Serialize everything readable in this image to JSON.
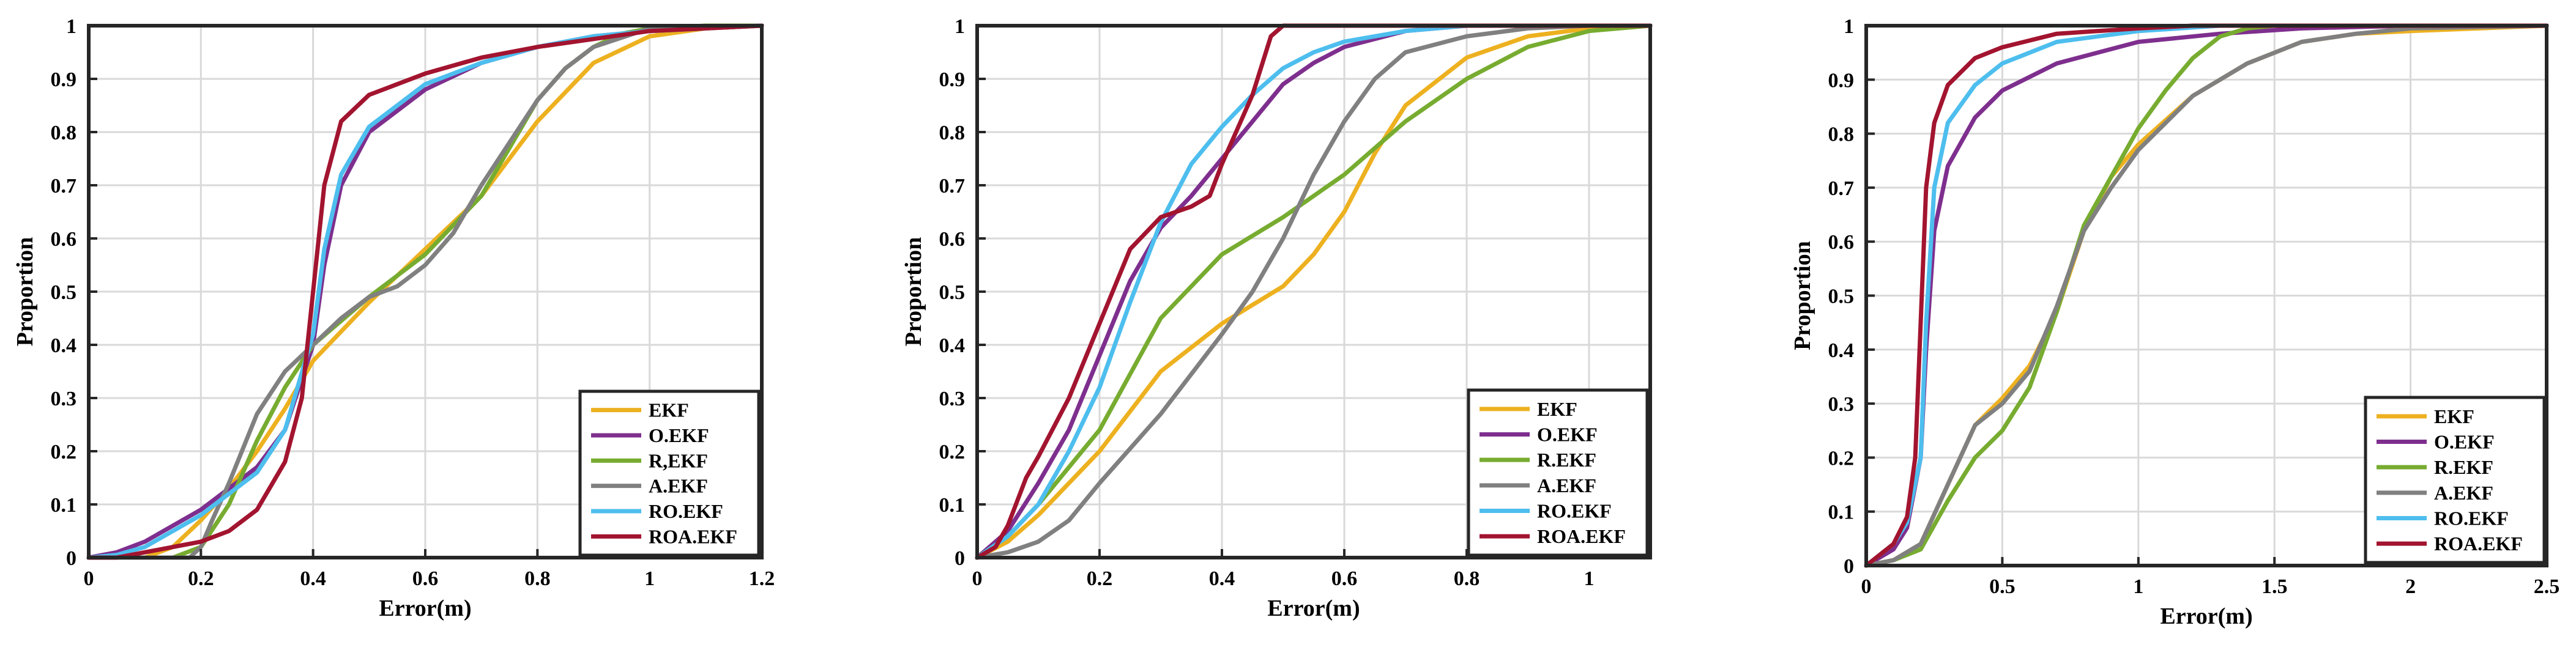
{
  "colors": {
    "EKF": "#EDB120",
    "O.EKF": "#7E2F8E",
    "R.EKF": "#77AC30",
    "A.EKF": "#808080",
    "RO.EKF": "#4DBEEE",
    "ROA.EKF": "#A2142F"
  },
  "chart_data": [
    {
      "type": "line",
      "title": "",
      "xlabel": "Error(m)",
      "ylabel": "Proportion",
      "xlim": [
        0,
        1.2
      ],
      "ylim": [
        0,
        1
      ],
      "xticks": [
        0,
        0.2,
        0.4,
        0.6,
        0.8,
        1,
        1.2
      ],
      "xtick_labels": [
        "0",
        "0.2",
        "0.4",
        "0.6",
        "0.8",
        "1",
        "1.2"
      ],
      "yticks": [
        0,
        0.1,
        0.2,
        0.3,
        0.4,
        0.5,
        0.6,
        0.7,
        0.8,
        0.9,
        1
      ],
      "ytick_labels": [
        "0",
        "0.1",
        "0.2",
        "0.3",
        "0.4",
        "0.5",
        "0.6",
        "0.7",
        "0.8",
        "0.9",
        "1"
      ],
      "grid": true,
      "legend_position": "bottom-right",
      "series": [
        {
          "name": "EKF",
          "key": "EKF",
          "x": [
            0,
            0.1,
            0.15,
            0.2,
            0.25,
            0.3,
            0.35,
            0.4,
            0.5,
            0.6,
            0.7,
            0.75,
            0.8,
            0.9,
            1.0,
            1.1,
            1.2
          ],
          "y": [
            0,
            0,
            0.02,
            0.07,
            0.13,
            0.2,
            0.28,
            0.37,
            0.48,
            0.58,
            0.68,
            0.75,
            0.82,
            0.93,
            0.98,
            0.995,
            1
          ]
        },
        {
          "name": "O.EKF",
          "key": "O.EKF",
          "x": [
            0,
            0.05,
            0.1,
            0.2,
            0.3,
            0.35,
            0.4,
            0.42,
            0.45,
            0.5,
            0.6,
            0.7,
            0.8,
            0.9,
            1.0,
            1.1,
            1.2
          ],
          "y": [
            0,
            0.01,
            0.03,
            0.09,
            0.17,
            0.24,
            0.4,
            0.55,
            0.7,
            0.8,
            0.88,
            0.93,
            0.96,
            0.98,
            0.99,
            0.995,
            1
          ]
        },
        {
          "name": "R,EKF",
          "key": "R.EKF",
          "x": [
            0,
            0.15,
            0.2,
            0.25,
            0.3,
            0.35,
            0.4,
            0.5,
            0.6,
            0.7,
            0.75,
            0.8,
            0.85,
            0.9,
            0.95,
            1.0,
            1.1,
            1.2
          ],
          "y": [
            0,
            0,
            0.02,
            0.1,
            0.22,
            0.32,
            0.4,
            0.49,
            0.57,
            0.68,
            0.77,
            0.86,
            0.92,
            0.96,
            0.985,
            0.995,
            1,
            1
          ]
        },
        {
          "name": "A.EKF",
          "key": "A.EKF",
          "x": [
            0,
            0.18,
            0.2,
            0.22,
            0.25,
            0.3,
            0.35,
            0.4,
            0.45,
            0.5,
            0.55,
            0.6,
            0.65,
            0.7,
            0.75,
            0.8,
            0.85,
            0.9,
            1.0,
            1.2
          ],
          "y": [
            0,
            0,
            0.02,
            0.07,
            0.14,
            0.27,
            0.35,
            0.4,
            0.45,
            0.49,
            0.51,
            0.55,
            0.61,
            0.7,
            0.78,
            0.86,
            0.92,
            0.96,
            0.995,
            1
          ]
        },
        {
          "name": "RO.EKF",
          "key": "RO.EKF",
          "x": [
            0,
            0.05,
            0.1,
            0.2,
            0.3,
            0.35,
            0.4,
            0.42,
            0.45,
            0.5,
            0.6,
            0.7,
            0.8,
            0.9,
            1.0,
            1.1,
            1.2
          ],
          "y": [
            0,
            0.005,
            0.02,
            0.08,
            0.16,
            0.24,
            0.42,
            0.58,
            0.72,
            0.81,
            0.89,
            0.93,
            0.96,
            0.98,
            0.99,
            0.995,
            1
          ]
        },
        {
          "name": "ROA.EKF",
          "key": "ROA.EKF",
          "x": [
            0,
            0.05,
            0.1,
            0.2,
            0.25,
            0.3,
            0.35,
            0.38,
            0.4,
            0.42,
            0.45,
            0.5,
            0.55,
            0.6,
            0.7,
            0.8,
            0.9,
            1.0,
            1.1,
            1.2
          ],
          "y": [
            0,
            0,
            0.01,
            0.03,
            0.05,
            0.09,
            0.18,
            0.3,
            0.5,
            0.7,
            0.82,
            0.87,
            0.89,
            0.91,
            0.94,
            0.96,
            0.975,
            0.99,
            0.995,
            1
          ]
        }
      ]
    },
    {
      "type": "line",
      "title": "",
      "xlabel": "Error(m)",
      "ylabel": "Proportion",
      "xlim": [
        0,
        1.1
      ],
      "ylim": [
        0,
        1
      ],
      "xticks": [
        0,
        0.2,
        0.4,
        0.6,
        0.8,
        1
      ],
      "xtick_labels": [
        "0",
        "0.2",
        "0.4",
        "0.6",
        "0.8",
        "1"
      ],
      "yticks": [
        0,
        0.1,
        0.2,
        0.3,
        0.4,
        0.5,
        0.6,
        0.7,
        0.8,
        0.9,
        1
      ],
      "ytick_labels": [
        "0",
        "0.1",
        "0.2",
        "0.3",
        "0.4",
        "0.5",
        "0.6",
        "0.7",
        "0.8",
        "0.9",
        "1"
      ],
      "grid": true,
      "legend_position": "bottom-right",
      "series": [
        {
          "name": "EKF",
          "key": "EKF",
          "x": [
            0,
            0.05,
            0.1,
            0.2,
            0.3,
            0.4,
            0.5,
            0.55,
            0.6,
            0.65,
            0.7,
            0.8,
            0.9,
            1.0,
            1.1
          ],
          "y": [
            0,
            0.03,
            0.08,
            0.2,
            0.35,
            0.44,
            0.51,
            0.57,
            0.65,
            0.76,
            0.85,
            0.94,
            0.98,
            0.995,
            1
          ]
        },
        {
          "name": "O.EKF",
          "key": "O.EKF",
          "x": [
            0,
            0.05,
            0.1,
            0.15,
            0.2,
            0.25,
            0.3,
            0.35,
            0.4,
            0.45,
            0.5,
            0.55,
            0.6,
            0.7,
            0.8,
            1.1
          ],
          "y": [
            0,
            0.05,
            0.14,
            0.24,
            0.38,
            0.52,
            0.62,
            0.68,
            0.75,
            0.82,
            0.89,
            0.93,
            0.96,
            0.99,
            1,
            1
          ]
        },
        {
          "name": "R.EKF",
          "key": "R.EKF",
          "x": [
            0,
            0.05,
            0.1,
            0.2,
            0.3,
            0.4,
            0.5,
            0.6,
            0.7,
            0.8,
            0.9,
            1.0,
            1.1
          ],
          "y": [
            0,
            0.04,
            0.1,
            0.24,
            0.45,
            0.57,
            0.64,
            0.72,
            0.82,
            0.9,
            0.96,
            0.99,
            1
          ]
        },
        {
          "name": "A.EKF",
          "key": "A.EKF",
          "x": [
            0,
            0.05,
            0.1,
            0.15,
            0.2,
            0.3,
            0.4,
            0.45,
            0.5,
            0.55,
            0.6,
            0.65,
            0.7,
            0.8,
            0.9,
            1.0,
            1.1
          ],
          "y": [
            0,
            0.01,
            0.03,
            0.07,
            0.14,
            0.27,
            0.42,
            0.5,
            0.6,
            0.72,
            0.82,
            0.9,
            0.95,
            0.98,
            0.995,
            1,
            1
          ]
        },
        {
          "name": "RO.EKF",
          "key": "RO.EKF",
          "x": [
            0,
            0.05,
            0.1,
            0.15,
            0.2,
            0.25,
            0.3,
            0.35,
            0.4,
            0.45,
            0.5,
            0.55,
            0.6,
            0.7,
            0.8,
            0.9,
            1.1
          ],
          "y": [
            0,
            0.04,
            0.1,
            0.2,
            0.32,
            0.48,
            0.63,
            0.74,
            0.81,
            0.87,
            0.92,
            0.95,
            0.97,
            0.99,
            1,
            1,
            1
          ]
        },
        {
          "name": "ROA.EKF",
          "key": "ROA.EKF",
          "x": [
            0,
            0.03,
            0.05,
            0.08,
            0.1,
            0.15,
            0.2,
            0.25,
            0.3,
            0.35,
            0.38,
            0.4,
            0.45,
            0.48,
            0.5,
            0.55,
            1.1
          ],
          "y": [
            0,
            0.02,
            0.06,
            0.15,
            0.19,
            0.3,
            0.44,
            0.58,
            0.64,
            0.66,
            0.68,
            0.74,
            0.87,
            0.98,
            1,
            1,
            1
          ]
        }
      ]
    },
    {
      "type": "line",
      "title": "",
      "xlabel": "Error(m)",
      "ylabel": "Proportion",
      "xlim": [
        0,
        2.5
      ],
      "ylim": [
        0,
        1
      ],
      "xticks": [
        0,
        0.5,
        1,
        1.5,
        2,
        2.5
      ],
      "xtick_labels": [
        "0",
        "0.5",
        "1",
        "1.5",
        "2",
        "2.5"
      ],
      "yticks": [
        0,
        0.1,
        0.2,
        0.3,
        0.4,
        0.5,
        0.6,
        0.7,
        0.8,
        0.9,
        1
      ],
      "ytick_labels": [
        "0",
        "0.1",
        "0.2",
        "0.3",
        "0.4",
        "0.5",
        "0.6",
        "0.7",
        "0.8",
        "0.9",
        "1"
      ],
      "grid": true,
      "legend_position": "bottom-right",
      "series": [
        {
          "name": "EKF",
          "key": "EKF",
          "x": [
            0,
            0.1,
            0.2,
            0.3,
            0.4,
            0.5,
            0.6,
            0.7,
            0.8,
            0.9,
            1.0,
            1.2,
            1.4,
            1.6,
            1.8,
            2.0,
            2.5
          ],
          "y": [
            0,
            0.01,
            0.04,
            0.15,
            0.26,
            0.31,
            0.37,
            0.47,
            0.62,
            0.72,
            0.78,
            0.87,
            0.93,
            0.97,
            0.985,
            0.99,
            1
          ]
        },
        {
          "name": "O.EKF",
          "key": "O.EKF",
          "x": [
            0,
            0.1,
            0.15,
            0.2,
            0.22,
            0.25,
            0.3,
            0.4,
            0.5,
            0.7,
            1.0,
            1.3,
            1.6,
            2.0,
            2.5
          ],
          "y": [
            0,
            0.03,
            0.07,
            0.2,
            0.4,
            0.62,
            0.74,
            0.83,
            0.88,
            0.93,
            0.97,
            0.985,
            0.995,
            1,
            1
          ]
        },
        {
          "name": "R.EKF",
          "key": "R.EKF",
          "x": [
            0,
            0.1,
            0.2,
            0.3,
            0.4,
            0.5,
            0.6,
            0.7,
            0.8,
            0.9,
            1.0,
            1.1,
            1.2,
            1.3,
            1.4,
            1.5,
            2.0,
            2.5
          ],
          "y": [
            0,
            0.01,
            0.03,
            0.12,
            0.2,
            0.25,
            0.33,
            0.47,
            0.63,
            0.72,
            0.81,
            0.88,
            0.94,
            0.98,
            0.995,
            1,
            1,
            1
          ]
        },
        {
          "name": "A.EKF",
          "key": "A.EKF",
          "x": [
            0,
            0.1,
            0.2,
            0.3,
            0.4,
            0.5,
            0.6,
            0.7,
            0.8,
            0.9,
            1.0,
            1.2,
            1.4,
            1.6,
            1.8,
            2.0,
            2.5
          ],
          "y": [
            0,
            0.01,
            0.04,
            0.15,
            0.26,
            0.3,
            0.36,
            0.48,
            0.62,
            0.7,
            0.77,
            0.87,
            0.93,
            0.97,
            0.985,
            0.995,
            1
          ]
        },
        {
          "name": "RO.EKF",
          "key": "RO.EKF",
          "x": [
            0,
            0.1,
            0.15,
            0.2,
            0.22,
            0.25,
            0.3,
            0.4,
            0.5,
            0.7,
            1.0,
            1.3,
            2.5
          ],
          "y": [
            0,
            0.04,
            0.08,
            0.2,
            0.45,
            0.7,
            0.82,
            0.89,
            0.93,
            0.97,
            0.99,
            1,
            1
          ]
        },
        {
          "name": "ROA.EKF",
          "key": "ROA.EKF",
          "x": [
            0,
            0.1,
            0.15,
            0.18,
            0.2,
            0.22,
            0.25,
            0.3,
            0.4,
            0.5,
            0.7,
            1.0,
            1.2,
            2.5
          ],
          "y": [
            0,
            0.04,
            0.09,
            0.2,
            0.45,
            0.7,
            0.82,
            0.89,
            0.94,
            0.96,
            0.985,
            0.995,
            1,
            1
          ]
        }
      ]
    }
  ]
}
